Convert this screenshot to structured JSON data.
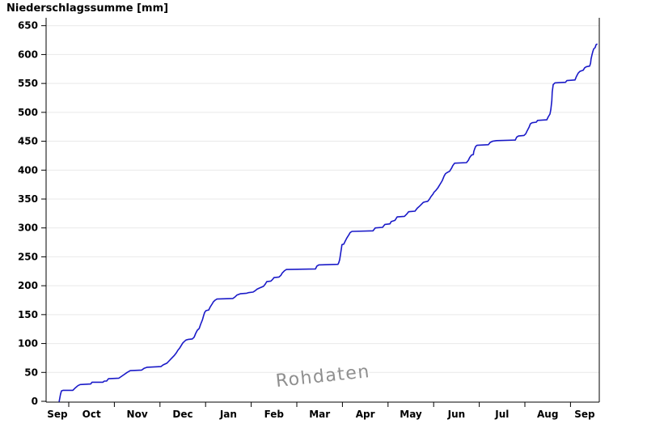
{
  "chart_data": {
    "type": "line",
    "title": "Niederschlagssumme [mm]",
    "watermark": "Rohdaten",
    "xlabel": "",
    "ylabel": "Niederschlagssumme [mm]",
    "x_unit": "months_since_Sep_1",
    "x_tick_month_labels": [
      "Sep",
      "Oct",
      "Nov",
      "Dec",
      "Jan",
      "Feb",
      "Mar",
      "Apr",
      "May",
      "Jun",
      "Jul",
      "Aug",
      "Sep"
    ],
    "y_tick_labels": [
      "0",
      "50",
      "100",
      "150",
      "200",
      "250",
      "300",
      "350",
      "400",
      "450",
      "500",
      "550",
      "600",
      "650"
    ],
    "ylim": [
      0,
      650
    ],
    "y_tick_step": 50,
    "grid": "horizontal",
    "legend": "none",
    "line_color": "#1a1ac8",
    "grid_color": "#e9e9e9",
    "axis_color": "#000000",
    "watermark_color": "#8f8f8f",
    "series": [
      {
        "name": "Niederschlagssumme",
        "points": [
          [
            0.79,
            0
          ],
          [
            0.82,
            12
          ],
          [
            0.84,
            18
          ],
          [
            0.88,
            19
          ],
          [
            1.09,
            19
          ],
          [
            1.14,
            23
          ],
          [
            1.2,
            27
          ],
          [
            1.25,
            29
          ],
          [
            1.48,
            30
          ],
          [
            1.51,
            33
          ],
          [
            1.75,
            33
          ],
          [
            1.78,
            35
          ],
          [
            1.83,
            35
          ],
          [
            1.87,
            39
          ],
          [
            2.1,
            40
          ],
          [
            2.19,
            45
          ],
          [
            2.28,
            50
          ],
          [
            2.35,
            53
          ],
          [
            2.6,
            54
          ],
          [
            2.65,
            57
          ],
          [
            2.72,
            59
          ],
          [
            3.02,
            60
          ],
          [
            3.07,
            63
          ],
          [
            3.15,
            66
          ],
          [
            3.2,
            70
          ],
          [
            3.25,
            74
          ],
          [
            3.31,
            79
          ],
          [
            3.36,
            84
          ],
          [
            3.39,
            88
          ],
          [
            3.43,
            92
          ],
          [
            3.47,
            97
          ],
          [
            3.5,
            101
          ],
          [
            3.54,
            104
          ],
          [
            3.57,
            106
          ],
          [
            3.61,
            107
          ],
          [
            3.71,
            108
          ],
          [
            3.75,
            111
          ],
          [
            3.78,
            117
          ],
          [
            3.82,
            123
          ],
          [
            3.86,
            126
          ],
          [
            3.89,
            133
          ],
          [
            3.93,
            141
          ],
          [
            3.96,
            149
          ],
          [
            3.98,
            154
          ],
          [
            4.01,
            157
          ],
          [
            4.07,
            158
          ],
          [
            4.1,
            163
          ],
          [
            4.14,
            168
          ],
          [
            4.17,
            172
          ],
          [
            4.21,
            175
          ],
          [
            4.25,
            177
          ],
          [
            4.6,
            178
          ],
          [
            4.65,
            181
          ],
          [
            4.69,
            184
          ],
          [
            4.76,
            186
          ],
          [
            4.9,
            187
          ],
          [
            4.94,
            188
          ],
          [
            5.04,
            189
          ],
          [
            5.08,
            191
          ],
          [
            5.13,
            194
          ],
          [
            5.18,
            196
          ],
          [
            5.27,
            199
          ],
          [
            5.31,
            203
          ],
          [
            5.34,
            207
          ],
          [
            5.43,
            208
          ],
          [
            5.47,
            211
          ],
          [
            5.5,
            214
          ],
          [
            5.61,
            215
          ],
          [
            5.65,
            218
          ],
          [
            5.68,
            222
          ],
          [
            5.73,
            226
          ],
          [
            5.77,
            228
          ],
          [
            6.41,
            229
          ],
          [
            6.44,
            234
          ],
          [
            6.48,
            236
          ],
          [
            6.9,
            237
          ],
          [
            6.92,
            240
          ],
          [
            6.94,
            245
          ],
          [
            6.96,
            255
          ],
          [
            6.98,
            266
          ],
          [
            6.99,
            271
          ],
          [
            7.03,
            272
          ],
          [
            7.06,
            277
          ],
          [
            7.1,
            283
          ],
          [
            7.14,
            288
          ],
          [
            7.17,
            292
          ],
          [
            7.21,
            294
          ],
          [
            7.67,
            295
          ],
          [
            7.72,
            300
          ],
          [
            7.88,
            301
          ],
          [
            7.93,
            306
          ],
          [
            8.04,
            307
          ],
          [
            8.07,
            311
          ],
          [
            8.15,
            313
          ],
          [
            8.2,
            319
          ],
          [
            8.36,
            320
          ],
          [
            8.41,
            324
          ],
          [
            8.45,
            328
          ],
          [
            8.59,
            329
          ],
          [
            8.64,
            334
          ],
          [
            8.68,
            337
          ],
          [
            8.71,
            339
          ],
          [
            8.77,
            344
          ],
          [
            8.8,
            345
          ],
          [
            8.87,
            346
          ],
          [
            8.91,
            350
          ],
          [
            8.94,
            354
          ],
          [
            8.98,
            358
          ],
          [
            9.01,
            362
          ],
          [
            9.05,
            365
          ],
          [
            9.09,
            369
          ],
          [
            9.12,
            373
          ],
          [
            9.16,
            378
          ],
          [
            9.19,
            382
          ],
          [
            9.23,
            390
          ],
          [
            9.26,
            394
          ],
          [
            9.3,
            396
          ],
          [
            9.35,
            398
          ],
          [
            9.39,
            403
          ],
          [
            9.42,
            408
          ],
          [
            9.46,
            412
          ],
          [
            9.72,
            413
          ],
          [
            9.76,
            417
          ],
          [
            9.79,
            422
          ],
          [
            9.83,
            426
          ],
          [
            9.87,
            427
          ],
          [
            9.88,
            432
          ],
          [
            9.9,
            437
          ],
          [
            9.92,
            441
          ],
          [
            9.95,
            443
          ],
          [
            10.2,
            444
          ],
          [
            10.24,
            448
          ],
          [
            10.29,
            450
          ],
          [
            10.38,
            451
          ],
          [
            10.79,
            452
          ],
          [
            10.82,
            457
          ],
          [
            10.86,
            459
          ],
          [
            10.98,
            460
          ],
          [
            11.02,
            463
          ],
          [
            11.05,
            468
          ],
          [
            11.09,
            474
          ],
          [
            11.12,
            480
          ],
          [
            11.16,
            482
          ],
          [
            11.25,
            483
          ],
          [
            11.28,
            486
          ],
          [
            11.48,
            487
          ],
          [
            11.51,
            492
          ],
          [
            11.55,
            497
          ],
          [
            11.57,
            505
          ],
          [
            11.59,
            520
          ],
          [
            11.6,
            535
          ],
          [
            11.62,
            548
          ],
          [
            11.66,
            551
          ],
          [
            11.89,
            552
          ],
          [
            11.92,
            555
          ],
          [
            12.1,
            556
          ],
          [
            12.13,
            562
          ],
          [
            12.17,
            568
          ],
          [
            12.21,
            571
          ],
          [
            12.28,
            573
          ],
          [
            12.31,
            577
          ],
          [
            12.35,
            579
          ],
          [
            12.42,
            580
          ],
          [
            12.44,
            585
          ],
          [
            12.45,
            592
          ],
          [
            12.47,
            599
          ],
          [
            12.49,
            605
          ],
          [
            12.51,
            610
          ],
          [
            12.54,
            612
          ],
          [
            12.56,
            617
          ],
          [
            12.58,
            618
          ]
        ]
      }
    ]
  }
}
